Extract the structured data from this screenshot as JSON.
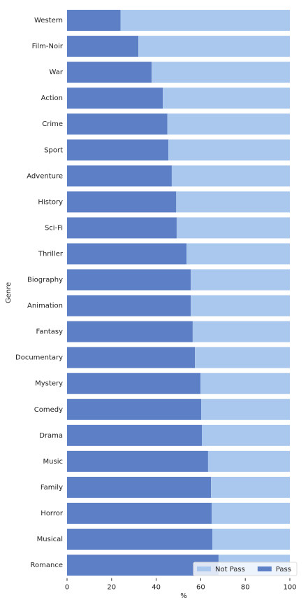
{
  "chart_data": {
    "type": "stacked-barh",
    "xlabel": "%",
    "ylabel": "Genre",
    "categories": [
      "Western",
      "Film-Noir",
      "War",
      "Action",
      "Crime",
      "Sport",
      "Adventure",
      "History",
      "Sci-Fi",
      "Thriller",
      "Biography",
      "Animation",
      "Fantasy",
      "Documentary",
      "Mystery",
      "Comedy",
      "Drama",
      "Music",
      "Family",
      "Horror",
      "Musical",
      "Romance"
    ],
    "series": [
      {
        "name": "Not Pass",
        "color": "#aac8ee",
        "values": [
          76,
          68,
          62,
          57,
          55,
          54.5,
          53,
          51,
          50.8,
          46.4,
          44.5,
          44.5,
          43.6,
          42.6,
          40.1,
          39.8,
          39.5,
          36.7,
          35.4,
          35.1,
          34.8,
          32
        ]
      },
      {
        "name": "Pass",
        "color": "#5c7fc5",
        "values": [
          24,
          32,
          38,
          43,
          45,
          45.5,
          47,
          49,
          49.2,
          53.6,
          55.5,
          55.5,
          56.4,
          57.4,
          59.9,
          60.2,
          60.5,
          63.3,
          64.6,
          64.9,
          65.2,
          68
        ]
      }
    ],
    "xlim": [
      0,
      100
    ],
    "xticks": [
      0,
      20,
      40,
      60,
      80,
      100
    ],
    "legend": "lower right"
  }
}
